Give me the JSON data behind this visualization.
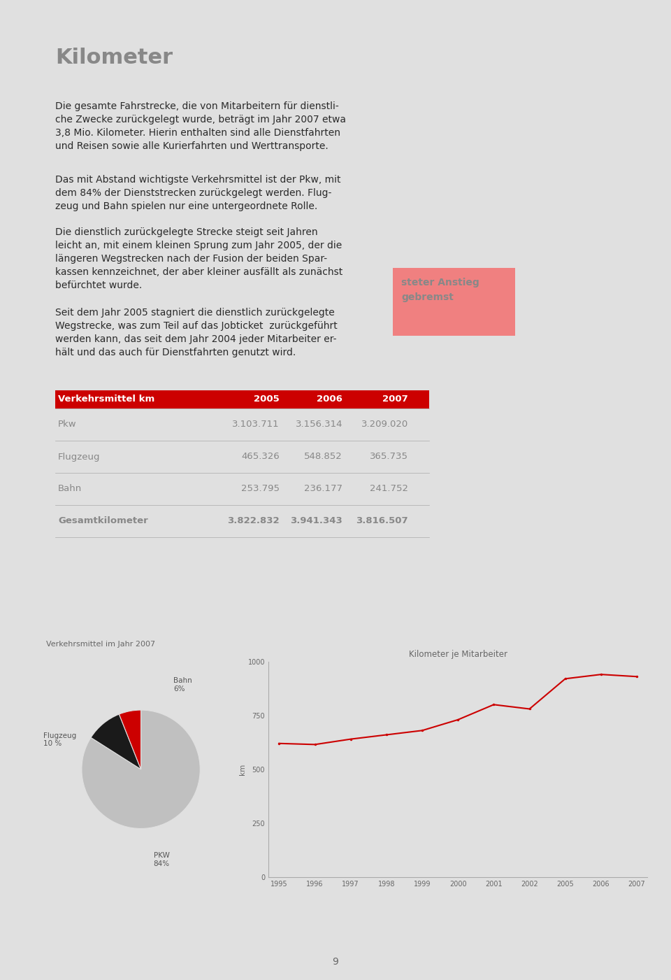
{
  "bg_color": "#e0e0e0",
  "title": "Kilometer",
  "title_color": "#888888",
  "title_fontsize": 22,
  "para1": "Die gesamte Fahrstrecke, die von Mitarbeitern für dienstli-\nche Zwecke zurückgelegt wurde, beträgt im Jahr 2007 etwa\n3,8 Mio. Kilometer. Hierin enthalten sind alle Dienstfahrten\nund Reisen sowie alle Kurierfahrten und Werttransporte.",
  "para2": "Das mit Abstand wichtigste Verkehrsmittel ist der Pkw, mit\ndem 84% der Dienststrecken zurückgelegt werden. Flug-\nzeug und Bahn spielen nur eine untergeordnete Rolle.",
  "para3": "Die dienstlich zurückgelegte Strecke steigt seit Jahren\nleicht an, mit einem kleinen Sprung zum Jahr 2005, der die\nlängeren Wegstrecken nach der Fusion der beiden Spar-\nkassen kennzeichnet, der aber kleiner ausfällt als zunächst\nbefürchtet wurde.",
  "para4": "Seit dem Jahr 2005 stagniert die dienstlich zurückgelegte\nWegstrecke, was zum Teil auf das Jobticket  zurückgeführt\nwerden kann, das seit dem Jahr 2004 jeder Mitarbeiter er-\nhält und das auch für Dienstfahrten genutzt wird.",
  "sidebar_text": "steter Anstieg\ngebremst",
  "sidebar_bg": "#f08080",
  "sidebar_text_color": "#888888",
  "table_header": [
    "Verkehrsmittel km",
    "2005",
    "2006",
    "2007"
  ],
  "table_header_bg": "#cc0000",
  "table_header_color": "#ffffff",
  "table_rows": [
    [
      "Pkw",
      "3.103.711",
      "3.156.314",
      "3.209.020"
    ],
    [
      "Flugzeug",
      "465.326",
      "548.852",
      "365.735"
    ],
    [
      "Bahn",
      "253.795",
      "236.177",
      "241.752"
    ],
    [
      "Gesamtkilometer",
      "3.822.832",
      "3.941.343",
      "3.816.507"
    ]
  ],
  "table_text_color": "#888888",
  "pie_title": "Verkehrsmittel im Jahr 2007",
  "pie_sizes": [
    84,
    10,
    6
  ],
  "pie_colors": [
    "#c0c0c0",
    "#1a1a1a",
    "#cc0000"
  ],
  "line_title": "Kilometer je Mitarbeiter",
  "line_ylabel": "km",
  "line_years": [
    "1995",
    "1996",
    "1997",
    "1998",
    "1999",
    "2000",
    "2001",
    "2002",
    "2005",
    "2006",
    "2007"
  ],
  "line_values": [
    620,
    615,
    640,
    660,
    680,
    730,
    800,
    780,
    920,
    940,
    930
  ],
  "line_color": "#cc0000",
  "line_ylim": [
    0,
    1000
  ],
  "line_yticks": [
    0,
    250,
    500,
    750,
    1000
  ],
  "page_number": "9",
  "text_color": "#2a2a2a",
  "text_fontsize": 10.0
}
